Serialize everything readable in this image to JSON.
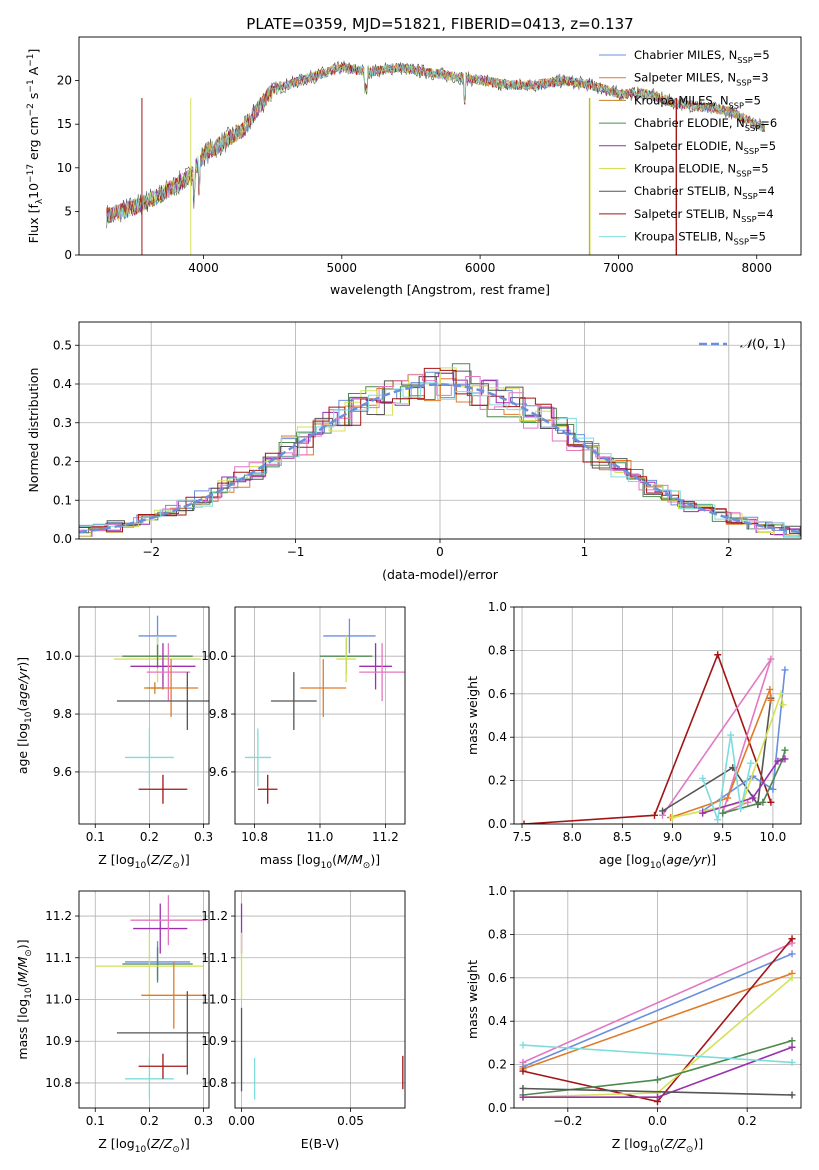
{
  "figure_title": "PLATE=0359, MJD=51821, FIBERID=0413, z=0.137",
  "colors": {
    "chabrier_miles": "#6a8fdc",
    "salpeter_miles": "#e07b2a",
    "kroupa_miles": "#c8802a",
    "chabrier_elodie": "#4e8a4e",
    "salpeter_elodie": "#9b2fae",
    "kroupa_elodie": "#d4e157",
    "chabrier_stelib": "#555555",
    "salpeter_stelib": "#a31515",
    "kroupa_stelib": "#7fdcdc",
    "pink": "#e377c2",
    "normal_curve": "#6a8fdc"
  },
  "chart_data": [
    {
      "id": "spectrum",
      "type": "line",
      "xlabel": "wavelength [Angstrom, rest frame]",
      "ylabel": "Flux [f_λ 10^-17 erg cm^-2 s^-1 A^-1]",
      "xlim": [
        3100,
        8320
      ],
      "ylim": [
        0,
        25
      ],
      "xticks": [
        4000,
        5000,
        6000,
        7000,
        8000
      ],
      "yticks": [
        0,
        5,
        10,
        15,
        20
      ],
      "legend_placement": "top-right",
      "grid": false,
      "envelope": {
        "x": [
          3300,
          3500,
          3700,
          3900,
          4000,
          4200,
          4300,
          4400,
          4500,
          4700,
          4900,
          5000,
          5200,
          5400,
          5600,
          5800,
          6000,
          6200,
          6400,
          6600,
          6800,
          7000,
          7200,
          7400,
          7600,
          7800,
          8000,
          8060
        ],
        "y": [
          4.5,
          5.5,
          7.0,
          9.0,
          11.5,
          13.5,
          14.5,
          17.0,
          19.0,
          20.0,
          21.0,
          21.5,
          21.0,
          21.5,
          21.0,
          20.5,
          20.0,
          19.5,
          19.5,
          20.0,
          19.5,
          18.5,
          18.5,
          17.5,
          17.0,
          16.5,
          15.0,
          14.5
        ]
      },
      "series": [
        {
          "name": "Chabrier MILES, N_SSP=5",
          "color": "#6a8fdc"
        },
        {
          "name": "Salpeter MILES, N_SSP=3",
          "color": "#e07b2a"
        },
        {
          "name": "Kroupa MILES, N_SSP=5",
          "color": "#c8802a"
        },
        {
          "name": "Chabrier ELODIE, N_SSP=6",
          "color": "#4e8a4e"
        },
        {
          "name": "Salpeter ELODIE, N_SSP=5",
          "color": "#9b2fae"
        },
        {
          "name": "Kroupa ELODIE, N_SSP=5",
          "color": "#d4e157"
        },
        {
          "name": "Chabrier STELIB, N_SSP=4",
          "color": "#555555"
        },
        {
          "name": "Salpeter STELIB, N_SSP=4",
          "color": "#a31515"
        },
        {
          "name": "Kroupa STELIB, N_SSP=5",
          "color": "#7fdcdc"
        }
      ]
    },
    {
      "id": "residual_hist",
      "type": "area",
      "xlabel": "(data-model)/error",
      "ylabel": "Normed distribution",
      "xlim": [
        -2.5,
        2.5
      ],
      "ylim": [
        0,
        0.56
      ],
      "xticks": [
        -2,
        -1,
        0,
        1,
        2
      ],
      "yticks": [
        0.0,
        0.1,
        0.2,
        0.3,
        0.4,
        0.5
      ],
      "grid": true,
      "legend_placement": "top-right",
      "legend_label": "N(0,1)",
      "reference_curve": "normal(0,1)"
    },
    {
      "id": "age_vs_Z",
      "type": "scatter",
      "xlabel": "Z [log10(Z/Z⊙)]",
      "ylabel": "age [log10(age/yr)]",
      "xlim": [
        0.07,
        0.31
      ],
      "ylim": [
        9.42,
        10.17
      ],
      "xticks": [
        0.1,
        0.2,
        0.3
      ],
      "yticks": [
        9.6,
        9.8,
        10.0
      ],
      "grid": true,
      "points": [
        {
          "x": 0.215,
          "y": 10.07,
          "xerr": 0.035,
          "yerr": 0.07,
          "color": "#6a8fdc"
        },
        {
          "x": 0.215,
          "y": 9.99,
          "xerr": 0.08,
          "yerr": 0.08,
          "color": "#d4e157"
        },
        {
          "x": 0.215,
          "y": 10.0,
          "xerr": 0.065,
          "yerr": 0.04,
          "color": "#4e8a4e"
        },
        {
          "x": 0.225,
          "y": 9.965,
          "xerr": 0.06,
          "yerr": 0.08,
          "color": "#9b2fae"
        },
        {
          "x": 0.235,
          "y": 9.945,
          "xerr": 0.04,
          "yerr": 0.1,
          "color": "#e377c2"
        },
        {
          "x": 0.24,
          "y": 9.89,
          "xerr": 0.05,
          "yerr": 0.1,
          "color": "#e07b2a"
        },
        {
          "x": 0.21,
          "y": 9.89,
          "xerr": 0.015,
          "yerr": 0.02,
          "color": "#c8802a"
        },
        {
          "x": 0.27,
          "y": 9.845,
          "xerr": 0.13,
          "yerr": 0.1,
          "color": "#555555"
        },
        {
          "x": 0.2,
          "y": 9.65,
          "xerr": 0.045,
          "yerr": 0.1,
          "color": "#7fdcdc"
        },
        {
          "x": 0.225,
          "y": 9.54,
          "xerr": 0.045,
          "yerr": 0.05,
          "color": "#a31515"
        }
      ]
    },
    {
      "id": "age_vs_mass",
      "type": "scatter",
      "xlabel": "mass [log10(M/M⊙)]",
      "ylabel": "",
      "xlim": [
        10.74,
        11.26
      ],
      "ylim": [
        9.42,
        10.17
      ],
      "xticks": [
        10.8,
        11.0,
        11.2
      ],
      "yticks": [
        9.6,
        9.8,
        10.0
      ],
      "grid": true,
      "points": [
        {
          "x": 11.09,
          "y": 10.07,
          "xerr": 0.08,
          "yerr": 0.06,
          "color": "#6a8fdc"
        },
        {
          "x": 11.08,
          "y": 10.0,
          "xerr": 0.08,
          "yerr": 0.06,
          "color": "#4e8a4e"
        },
        {
          "x": 11.08,
          "y": 9.99,
          "xerr": 0.03,
          "yerr": 0.08,
          "color": "#d4e157"
        },
        {
          "x": 11.17,
          "y": 9.965,
          "xerr": 0.05,
          "yerr": 0.08,
          "color": "#9b2fae"
        },
        {
          "x": 11.19,
          "y": 9.945,
          "xerr": 0.07,
          "yerr": 0.1,
          "color": "#e377c2"
        },
        {
          "x": 11.01,
          "y": 9.89,
          "xerr": 0.07,
          "yerr": 0.1,
          "color": "#e07b2a"
        },
        {
          "x": 10.92,
          "y": 9.845,
          "xerr": 0.07,
          "yerr": 0.1,
          "color": "#555555"
        },
        {
          "x": 10.81,
          "y": 9.65,
          "xerr": 0.04,
          "yerr": 0.1,
          "color": "#7fdcdc"
        },
        {
          "x": 10.84,
          "y": 9.54,
          "xerr": 0.03,
          "yerr": 0.05,
          "color": "#a31515"
        }
      ]
    },
    {
      "id": "weight_vs_age",
      "type": "line",
      "xlabel": "age [log10(age/yr)]",
      "ylabel": "mass weight",
      "xlim": [
        7.42,
        10.28
      ],
      "ylim": [
        0,
        1
      ],
      "xticks": [
        7.5,
        8.0,
        8.5,
        9.0,
        9.5,
        10.0
      ],
      "yticks": [
        0.0,
        0.2,
        0.4,
        0.6,
        0.8,
        1.0
      ],
      "grid": true,
      "series": [
        {
          "color": "#a31515",
          "x": [
            7.52,
            8.82,
            9.45,
            9.98
          ],
          "y": [
            0.0,
            0.04,
            0.78,
            0.1
          ]
        },
        {
          "color": "#e377c2",
          "x": [
            8.9,
            9.98,
            9.5,
            9.75
          ],
          "y": [
            0.04,
            0.76,
            0.05,
            0.1
          ]
        },
        {
          "color": "#555555",
          "x": [
            8.9,
            9.6,
            9.85,
            9.98
          ],
          "y": [
            0.06,
            0.26,
            0.09,
            0.58
          ]
        },
        {
          "color": "#6a8fdc",
          "x": [
            9.3,
            9.8,
            10.0,
            10.12
          ],
          "y": [
            0.06,
            0.22,
            0.16,
            0.71
          ]
        },
        {
          "color": "#e07b2a",
          "x": [
            8.98,
            9.55,
            9.97,
            9.98
          ],
          "y": [
            0.03,
            0.12,
            0.62,
            0.57
          ]
        },
        {
          "color": "#d4e157",
          "x": [
            9.0,
            9.7,
            10.08,
            10.1
          ],
          "y": [
            0.03,
            0.1,
            0.6,
            0.55
          ]
        },
        {
          "color": "#4e8a4e",
          "x": [
            9.5,
            9.9,
            10.1,
            10.12
          ],
          "y": [
            0.05,
            0.1,
            0.3,
            0.34
          ]
        },
        {
          "color": "#9b2fae",
          "x": [
            9.3,
            9.8,
            10.05,
            10.12
          ],
          "y": [
            0.05,
            0.12,
            0.29,
            0.3
          ]
        },
        {
          "color": "#7fdcdc",
          "x": [
            9.3,
            9.45,
            9.58,
            9.68,
            9.78
          ],
          "y": [
            0.21,
            0.02,
            0.41,
            0.07,
            0.28
          ]
        }
      ]
    },
    {
      "id": "mass_vs_Z",
      "type": "scatter",
      "xlabel": "Z [log10(Z/Z⊙)]",
      "ylabel": "mass [log10(M/M⊙)]",
      "xlim": [
        0.07,
        0.31
      ],
      "ylim": [
        10.74,
        11.26
      ],
      "xticks": [
        0.1,
        0.2,
        0.3
      ],
      "yticks": [
        10.8,
        10.9,
        11.0,
        11.1,
        11.2
      ],
      "grid": true,
      "points": [
        {
          "x": 0.22,
          "y": 11.17,
          "xerr": 0.05,
          "yerr": 0.06,
          "color": "#9b2fae"
        },
        {
          "x": 0.235,
          "y": 11.19,
          "xerr": 0.07,
          "yerr": 0.06,
          "color": "#e377c2"
        },
        {
          "x": 0.215,
          "y": 11.09,
          "xerr": 0.06,
          "yerr": 0.05,
          "color": "#6a8fdc"
        },
        {
          "x": 0.215,
          "y": 11.085,
          "xerr": 0.065,
          "yerr": 0.04,
          "color": "#4e8a4e"
        },
        {
          "x": 0.2,
          "y": 11.08,
          "xerr": 0.1,
          "yerr": 0.08,
          "color": "#d4e157"
        },
        {
          "x": 0.245,
          "y": 11.01,
          "xerr": 0.06,
          "yerr": 0.08,
          "color": "#e07b2a"
        },
        {
          "x": 0.27,
          "y": 10.92,
          "xerr": 0.13,
          "yerr": 0.1,
          "color": "#555555"
        },
        {
          "x": 0.2,
          "y": 10.81,
          "xerr": 0.045,
          "yerr": 0.05,
          "color": "#7fdcdc"
        },
        {
          "x": 0.225,
          "y": 10.84,
          "xerr": 0.045,
          "yerr": 0.03,
          "color": "#a31515"
        }
      ]
    },
    {
      "id": "mass_vs_ebv",
      "type": "scatter",
      "xlabel": "E(B-V)",
      "ylabel": "",
      "xlim": [
        -0.003,
        0.075
      ],
      "ylim": [
        10.74,
        11.26
      ],
      "xticks": [
        0.0,
        0.05
      ],
      "yticks": [
        10.8,
        10.9,
        11.0,
        11.1,
        11.2
      ],
      "grid": true,
      "points": [
        {
          "x": 0.0,
          "y": 11.17,
          "xerr": 0,
          "yerr": 0.06,
          "color": "#9b2fae"
        },
        {
          "x": 0.0,
          "y": 11.08,
          "xerr": 0,
          "yerr": 0.08,
          "color": "#d4e157"
        },
        {
          "x": 0.0,
          "y": 10.88,
          "xerr": 0,
          "yerr": 0.1,
          "color": "#555555"
        },
        {
          "x": 0.006,
          "y": 10.81,
          "xerr": 0,
          "yerr": 0.05,
          "color": "#7fdcdc"
        },
        {
          "x": 0.074,
          "y": 10.825,
          "xerr": 0,
          "yerr": 0.04,
          "color": "#a31515"
        }
      ]
    },
    {
      "id": "weight_vs_Z",
      "type": "line",
      "xlabel": "Z [log10(Z/Z⊙)]",
      "ylabel": "mass weight",
      "xlim": [
        -0.32,
        0.32
      ],
      "ylim": [
        0,
        1
      ],
      "xticks": [
        -0.2,
        0.0,
        0.2
      ],
      "yticks": [
        0.0,
        0.2,
        0.4,
        0.6,
        0.8,
        1.0
      ],
      "grid": true,
      "series": [
        {
          "color": "#e377c2",
          "x": [
            -0.3,
            0.3
          ],
          "y": [
            0.21,
            0.76
          ]
        },
        {
          "color": "#6a8fdc",
          "x": [
            -0.3,
            0.3
          ],
          "y": [
            0.19,
            0.71
          ]
        },
        {
          "color": "#e07b2a",
          "x": [
            -0.3,
            0.3
          ],
          "y": [
            0.18,
            0.62
          ]
        },
        {
          "color": "#a31515",
          "x": [
            -0.3,
            0.0,
            0.3
          ],
          "y": [
            0.17,
            0.03,
            0.78
          ]
        },
        {
          "color": "#d4e157",
          "x": [
            -0.3,
            0.0,
            0.3
          ],
          "y": [
            0.05,
            0.07,
            0.6
          ]
        },
        {
          "color": "#4e8a4e",
          "x": [
            -0.3,
            0.0,
            0.3
          ],
          "y": [
            0.06,
            0.13,
            0.31
          ]
        },
        {
          "color": "#9b2fae",
          "x": [
            -0.3,
            0.0,
            0.3
          ],
          "y": [
            0.05,
            0.05,
            0.28
          ]
        },
        {
          "color": "#7fdcdc",
          "x": [
            -0.3,
            0.3
          ],
          "y": [
            0.29,
            0.21
          ]
        },
        {
          "color": "#555555",
          "x": [
            -0.3,
            0.3
          ],
          "y": [
            0.09,
            0.06
          ]
        }
      ]
    }
  ]
}
